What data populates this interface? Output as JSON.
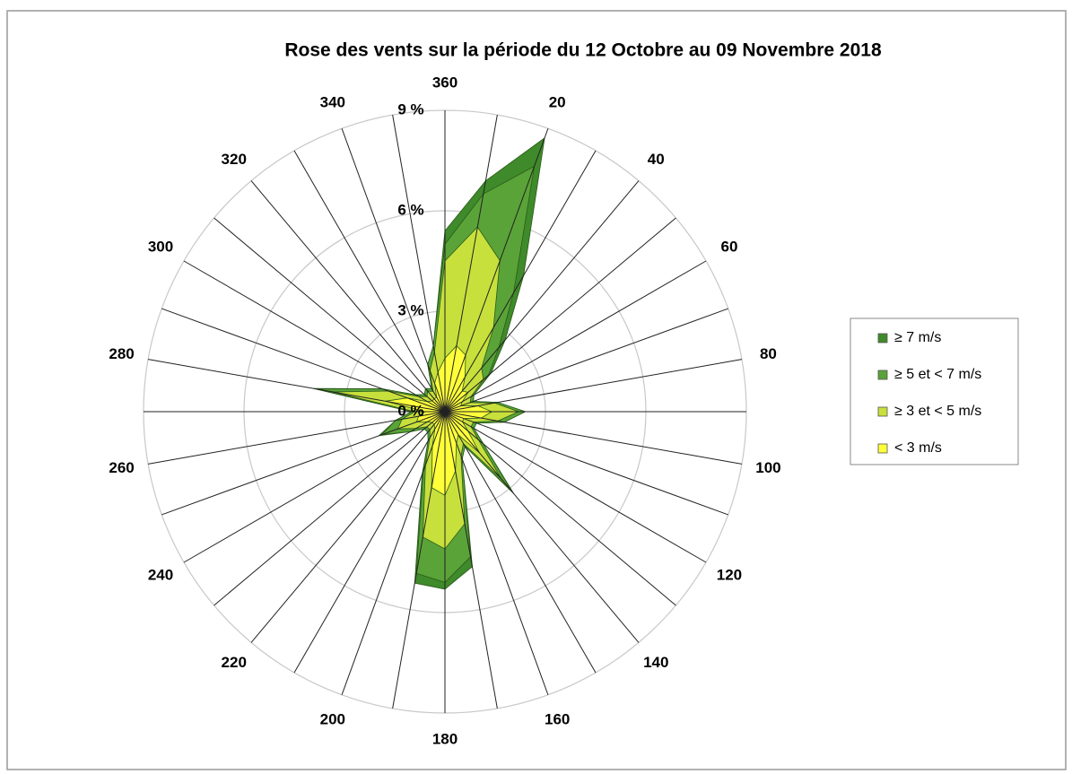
{
  "chart_data": {
    "type": "radar_stacked",
    "title": "Rose des vents sur la période du 12 Octobre au 09 Novembre 2018",
    "categories": [
      null,
      "20",
      null,
      "40",
      null,
      "60",
      null,
      "80",
      null,
      "100",
      null,
      "120",
      null,
      "140",
      null,
      "160",
      null,
      "180",
      null,
      "200",
      null,
      "220",
      null,
      "240",
      null,
      "260",
      null,
      "280",
      null,
      "300",
      null,
      "320",
      null,
      "340",
      null,
      "360"
    ],
    "ylim": [
      0,
      9
    ],
    "yticks": [
      {
        "value": 0,
        "label": "0 %"
      },
      {
        "value": 3,
        "label": "3 %"
      },
      {
        "value": 6,
        "label": "6 %"
      },
      {
        "value": 9,
        "label": "9 %"
      }
    ],
    "legend": "right",
    "series": [
      {
        "name": "≥ 7 m/s",
        "color": "#3f8a2a",
        "values": [
          0.4,
          0.9,
          0.6,
          0.3,
          0.1,
          0,
          0,
          0,
          0,
          0,
          0,
          0,
          0,
          0.1,
          0,
          0,
          0.3,
          0.2,
          0.3,
          0.1,
          0,
          0,
          0,
          0,
          0.1,
          0,
          0,
          0.1,
          0,
          0,
          0,
          0,
          0,
          0,
          0,
          0.4
        ]
      },
      {
        "name": "≥ 5 et < 7 m/s",
        "color": "#5aa338",
        "values": [
          1.0,
          3.0,
          1.2,
          0.8,
          0.2,
          0.1,
          0.1,
          0.1,
          0.2,
          0.2,
          0.1,
          0.1,
          0.2,
          0.5,
          0.1,
          0.1,
          1.0,
          1.0,
          1.1,
          0.2,
          0.1,
          0.1,
          0.1,
          0.2,
          0.5,
          0.2,
          0.1,
          0.5,
          0.2,
          0.1,
          0.1,
          0.1,
          0.1,
          0.2,
          0.2,
          0.5
        ]
      },
      {
        "name": "≥ 3 et < 5 m/s",
        "color": "#c8e03c",
        "values": [
          3.6,
          3.0,
          1.7,
          0.9,
          0.6,
          0.3,
          0.3,
          0.5,
          0.8,
          0.5,
          0.3,
          0.3,
          0.4,
          1.0,
          0.3,
          0.4,
          1.6,
          1.6,
          1.5,
          0.6,
          0.3,
          0.2,
          0.2,
          0.4,
          0.6,
          0.5,
          0.3,
          1.6,
          0.6,
          0.3,
          0.2,
          0.3,
          0.2,
          0.4,
          0.6,
          2.9
        ]
      },
      {
        "name": "< 3 m/s",
        "color": "#ffff3a",
        "values": [
          2.0,
          1.8,
          1.2,
          0.8,
          0.9,
          0.6,
          0.5,
          1.0,
          1.4,
          1.1,
          0.6,
          0.6,
          0.9,
          1.6,
          0.8,
          1.0,
          1.8,
          2.5,
          2.3,
          1.1,
          0.6,
          0.5,
          0.5,
          0.6,
          0.9,
          0.8,
          0.6,
          1.8,
          1.2,
          0.6,
          0.5,
          0.5,
          0.5,
          0.9,
          1.2,
          1.6
        ]
      }
    ]
  }
}
